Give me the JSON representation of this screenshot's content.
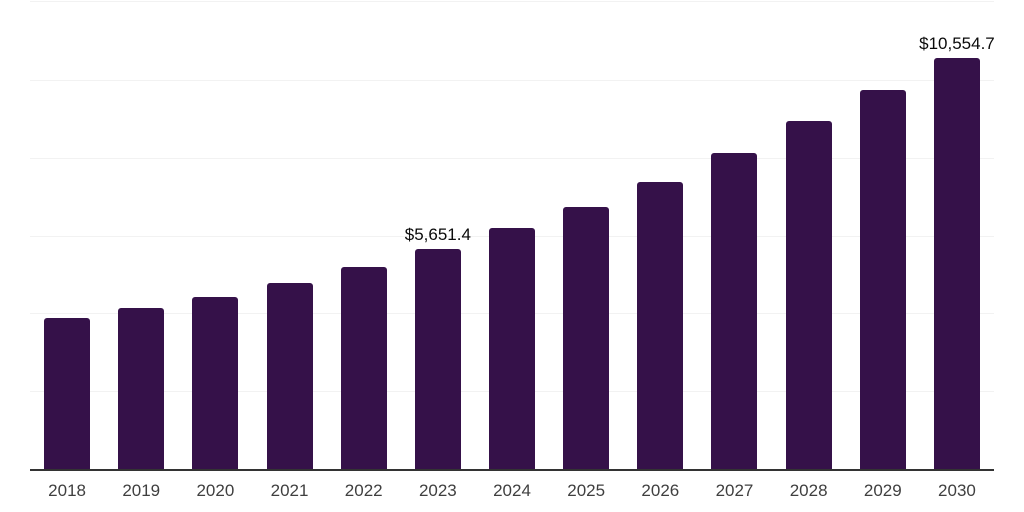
{
  "chart_data": {
    "type": "bar",
    "categories": [
      "2018",
      "2019",
      "2020",
      "2021",
      "2022",
      "2023",
      "2024",
      "2025",
      "2026",
      "2027",
      "2028",
      "2029",
      "2030"
    ],
    "values": [
      3885,
      4140,
      4420,
      4780,
      5190,
      5651.4,
      6185,
      6720,
      7385,
      8130,
      8945,
      9740,
      10554.7
    ],
    "bar_labels": {
      "2023": "$5,651.4",
      "2030": "$10,554.7"
    },
    "title": "",
    "xlabel": "",
    "ylabel": "",
    "ylim": [
      0,
      12000
    ],
    "gridline_step": 2000,
    "grid": true,
    "legend": false,
    "y_axis_labels_visible": false,
    "colors": {
      "bar": "#351149",
      "gridline": "#f2f2f2",
      "axis": "#333333",
      "x_tick_label": "#3f3f3f",
      "data_label": "#0a0a0a",
      "background": "#ffffff"
    }
  }
}
